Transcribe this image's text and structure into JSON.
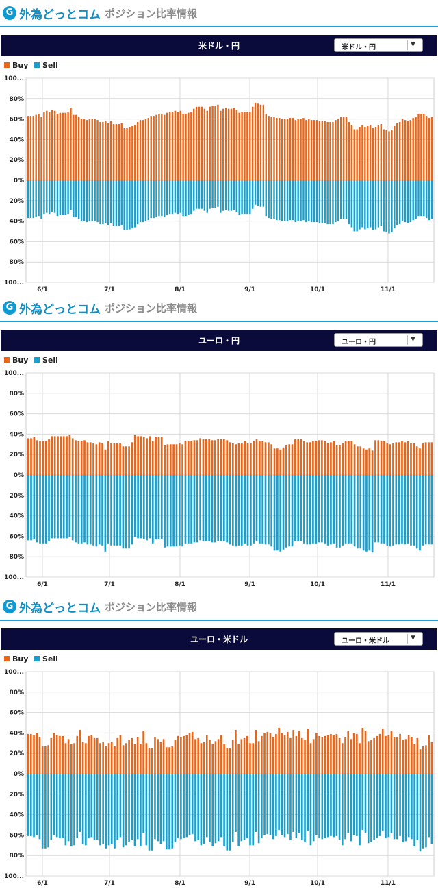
{
  "panels": [
    {
      "logo": "外為どっとコム",
      "logo_sub": "ポジション比率情報",
      "pair_title": "米ドル・円",
      "select_value": "米ドル・円",
      "legend": [
        "Buy",
        "Sell"
      ]
    },
    {
      "logo": "外為どっとコム",
      "logo_sub": "ポジション比率情報",
      "pair_title": "ユーロ・円",
      "select_value": "ユーロ・円",
      "legend": [
        "Buy",
        "Sell"
      ]
    },
    {
      "logo": "外為どっとコム",
      "logo_sub": "ポジション比率情報",
      "pair_title": "ユーロ・米ドル",
      "select_value": "ユーロ・米ドル",
      "legend": [
        "Buy",
        "Sell"
      ]
    }
  ],
  "colors": {
    "buy": "#e8661a",
    "sell": "#1a9fcc",
    "header_bar": "#0b0b3b",
    "brand": "#0f8fc3"
  },
  "chart_data": [
    {
      "type": "bar",
      "title": "米ドル・円",
      "y_tick_labels": [
        "100...",
        "80%",
        "60%",
        "40%",
        "20%",
        "0%",
        "20%",
        "40%",
        "60%",
        "80%",
        "100..."
      ],
      "x_tick_labels": [
        "6/1",
        "7/1",
        "8/1",
        "9/1",
        "10/1",
        "11/1"
      ],
      "ylim": [
        -100,
        100
      ],
      "grid": true,
      "legend_position": "top-left",
      "series": [
        {
          "name": "Buy",
          "values": [
            63,
            63,
            63,
            64,
            65,
            62,
            67,
            68,
            67,
            69,
            68,
            65,
            66,
            66,
            66,
            67,
            71,
            64,
            64,
            62,
            60,
            60,
            59,
            60,
            60,
            60,
            59,
            57,
            57,
            58,
            56,
            58,
            55,
            55,
            55,
            56,
            51,
            51,
            52,
            53,
            54,
            57,
            59,
            59,
            60,
            61,
            63,
            63,
            64,
            65,
            65,
            64,
            66,
            67,
            67,
            68,
            67,
            68,
            65,
            65,
            66,
            67,
            70,
            72,
            72,
            72,
            70,
            68,
            72,
            73,
            73,
            74,
            68,
            70,
            71,
            70,
            70,
            71,
            69,
            66,
            67,
            67,
            67,
            67,
            72,
            76,
            75,
            74,
            74,
            65,
            63,
            62,
            62,
            61,
            61,
            60,
            60,
            60,
            61,
            61,
            59,
            60,
            60,
            61,
            59,
            60,
            59,
            59,
            59,
            58,
            58,
            58,
            57,
            57,
            57,
            59,
            60,
            62,
            62,
            62,
            57,
            54,
            50,
            50,
            52,
            54,
            52,
            53,
            54,
            51,
            52,
            54,
            55,
            50,
            49,
            48,
            49,
            53,
            56,
            57,
            60,
            59,
            58,
            59,
            61,
            62,
            65,
            65,
            65,
            63,
            61,
            62
          ]
        },
        {
          "name": "Sell",
          "values": [
            37,
            37,
            37,
            36,
            35,
            38,
            33,
            32,
            33,
            31,
            32,
            35,
            34,
            34,
            34,
            33,
            29,
            36,
            36,
            38,
            40,
            40,
            41,
            40,
            40,
            40,
            41,
            43,
            43,
            42,
            44,
            42,
            45,
            45,
            45,
            44,
            49,
            49,
            48,
            47,
            46,
            43,
            41,
            41,
            40,
            39,
            37,
            37,
            36,
            35,
            35,
            36,
            34,
            33,
            33,
            32,
            33,
            32,
            35,
            35,
            34,
            33,
            30,
            28,
            28,
            28,
            30,
            32,
            28,
            27,
            27,
            26,
            32,
            30,
            29,
            30,
            30,
            29,
            31,
            34,
            33,
            33,
            33,
            33,
            28,
            24,
            25,
            26,
            26,
            35,
            37,
            38,
            38,
            39,
            39,
            40,
            40,
            40,
            39,
            39,
            41,
            40,
            40,
            39,
            41,
            40,
            41,
            41,
            41,
            42,
            42,
            42,
            43,
            43,
            43,
            41,
            40,
            38,
            38,
            38,
            43,
            46,
            50,
            50,
            48,
            46,
            48,
            47,
            46,
            49,
            48,
            46,
            45,
            50,
            51,
            52,
            51,
            47,
            44,
            43,
            40,
            41,
            42,
            41,
            39,
            38,
            35,
            35,
            35,
            37,
            39,
            38
          ]
        }
      ]
    },
    {
      "type": "bar",
      "title": "ユーロ・円",
      "y_tick_labels": [
        "100...",
        "80%",
        "60%",
        "40%",
        "20%",
        "0%",
        "20%",
        "40%",
        "60%",
        "80%",
        "100..."
      ],
      "x_tick_labels": [
        "6/1",
        "7/1",
        "8/1",
        "9/1",
        "10/1",
        "11/1"
      ],
      "ylim": [
        -100,
        100
      ],
      "grid": true,
      "legend_position": "top-left",
      "series": [
        {
          "name": "Buy",
          "values": [
            36,
            36,
            37,
            34,
            33,
            33,
            33,
            35,
            38,
            38,
            38,
            38,
            38,
            38,
            39,
            36,
            34,
            33,
            33,
            34,
            32,
            32,
            31,
            30,
            32,
            31,
            25,
            33,
            31,
            31,
            31,
            31,
            28,
            28,
            28,
            32,
            39,
            38,
            38,
            37,
            36,
            38,
            33,
            37,
            37,
            37,
            29,
            30,
            30,
            30,
            30,
            31,
            30,
            33,
            33,
            33,
            34,
            34,
            36,
            35,
            35,
            35,
            34,
            34,
            35,
            35,
            35,
            34,
            32,
            31,
            30,
            31,
            31,
            33,
            31,
            31,
            33,
            35,
            33,
            33,
            32,
            32,
            30,
            26,
            26,
            25,
            27,
            29,
            30,
            30,
            35,
            35,
            35,
            33,
            32,
            32,
            33,
            33,
            34,
            34,
            33,
            31,
            32,
            33,
            29,
            29,
            31,
            33,
            33,
            33,
            30,
            28,
            28,
            26,
            25,
            26,
            24,
            34,
            34,
            33,
            33,
            31,
            30,
            31,
            32,
            32,
            33,
            32,
            33,
            31,
            31,
            28,
            26,
            31,
            32,
            32,
            32
          ]
        },
        {
          "name": "Sell",
          "values": [
            64,
            64,
            63,
            66,
            67,
            67,
            67,
            65,
            62,
            62,
            62,
            62,
            62,
            62,
            61,
            64,
            66,
            67,
            67,
            66,
            68,
            68,
            69,
            70,
            68,
            69,
            75,
            67,
            69,
            69,
            69,
            69,
            72,
            72,
            72,
            68,
            61,
            62,
            62,
            63,
            64,
            62,
            67,
            63,
            63,
            63,
            71,
            70,
            70,
            70,
            70,
            69,
            70,
            67,
            67,
            67,
            66,
            66,
            64,
            65,
            65,
            65,
            66,
            66,
            65,
            65,
            65,
            66,
            68,
            69,
            70,
            69,
            69,
            67,
            69,
            69,
            67,
            65,
            67,
            67,
            68,
            68,
            70,
            74,
            74,
            75,
            73,
            71,
            70,
            70,
            65,
            65,
            65,
            67,
            68,
            68,
            67,
            67,
            66,
            66,
            67,
            69,
            68,
            67,
            71,
            71,
            69,
            67,
            67,
            67,
            70,
            72,
            72,
            74,
            75,
            74,
            76,
            66,
            66,
            67,
            67,
            69,
            70,
            69,
            68,
            68,
            67,
            68,
            67,
            69,
            69,
            72,
            74,
            69,
            68,
            68,
            68
          ]
        }
      ]
    },
    {
      "type": "bar",
      "title": "ユーロ・米ドル",
      "y_tick_labels": [
        "100...",
        "80%",
        "60%",
        "40%",
        "20%",
        "0%",
        "20%",
        "40%",
        "60%",
        "80%",
        "100..."
      ],
      "x_tick_labels": [
        "6/1",
        "7/1",
        "8/1",
        "9/1",
        "10/1",
        "11/1"
      ],
      "ylim": [
        -100,
        100
      ],
      "grid": true,
      "legend_position": "top-left",
      "series": [
        {
          "name": "Buy",
          "values": [
            39,
            39,
            38,
            40,
            36,
            27,
            27,
            28,
            35,
            40,
            38,
            37,
            37,
            30,
            34,
            29,
            30,
            37,
            43,
            31,
            30,
            37,
            38,
            35,
            35,
            30,
            31,
            27,
            30,
            31,
            27,
            35,
            38,
            28,
            30,
            33,
            35,
            29,
            36,
            29,
            42,
            30,
            25,
            25,
            36,
            34,
            31,
            34,
            26,
            26,
            27,
            33,
            37,
            36,
            37,
            38,
            40,
            41,
            34,
            35,
            30,
            31,
            38,
            33,
            29,
            32,
            34,
            38,
            29,
            25,
            25,
            33,
            43,
            29,
            34,
            35,
            37,
            30,
            30,
            43,
            32,
            37,
            40,
            41,
            40,
            36,
            39,
            45,
            40,
            38,
            41,
            35,
            43,
            37,
            42,
            35,
            33,
            44,
            30,
            34,
            40,
            37,
            36,
            37,
            38,
            39,
            38,
            39,
            35,
            30,
            36,
            42,
            34,
            40,
            39,
            30,
            45,
            42,
            32,
            33,
            35,
            37,
            39,
            44,
            37,
            38,
            42,
            36,
            36,
            39,
            33,
            34,
            38,
            36,
            29,
            35,
            24,
            27,
            28,
            38,
            31
          ]
        },
        {
          "name": "Sell",
          "values": [
            61,
            61,
            62,
            60,
            64,
            73,
            73,
            72,
            65,
            60,
            62,
            63,
            63,
            70,
            66,
            71,
            70,
            63,
            57,
            69,
            70,
            63,
            62,
            65,
            65,
            70,
            69,
            73,
            70,
            69,
            73,
            65,
            62,
            72,
            70,
            67,
            65,
            71,
            64,
            71,
            58,
            70,
            75,
            75,
            64,
            66,
            69,
            66,
            74,
            74,
            73,
            67,
            63,
            64,
            63,
            62,
            60,
            59,
            66,
            65,
            70,
            69,
            62,
            67,
            71,
            68,
            66,
            62,
            71,
            75,
            75,
            67,
            57,
            71,
            66,
            65,
            63,
            70,
            70,
            57,
            68,
            63,
            60,
            59,
            60,
            64,
            61,
            55,
            60,
            62,
            59,
            65,
            57,
            63,
            58,
            65,
            67,
            56,
            70,
            66,
            60,
            63,
            64,
            63,
            62,
            61,
            62,
            61,
            65,
            70,
            64,
            58,
            66,
            60,
            61,
            70,
            55,
            58,
            68,
            67,
            65,
            63,
            61,
            56,
            63,
            62,
            58,
            64,
            64,
            61,
            67,
            66,
            62,
            64,
            71,
            65,
            76,
            73,
            72,
            62,
            69
          ]
        }
      ]
    }
  ]
}
